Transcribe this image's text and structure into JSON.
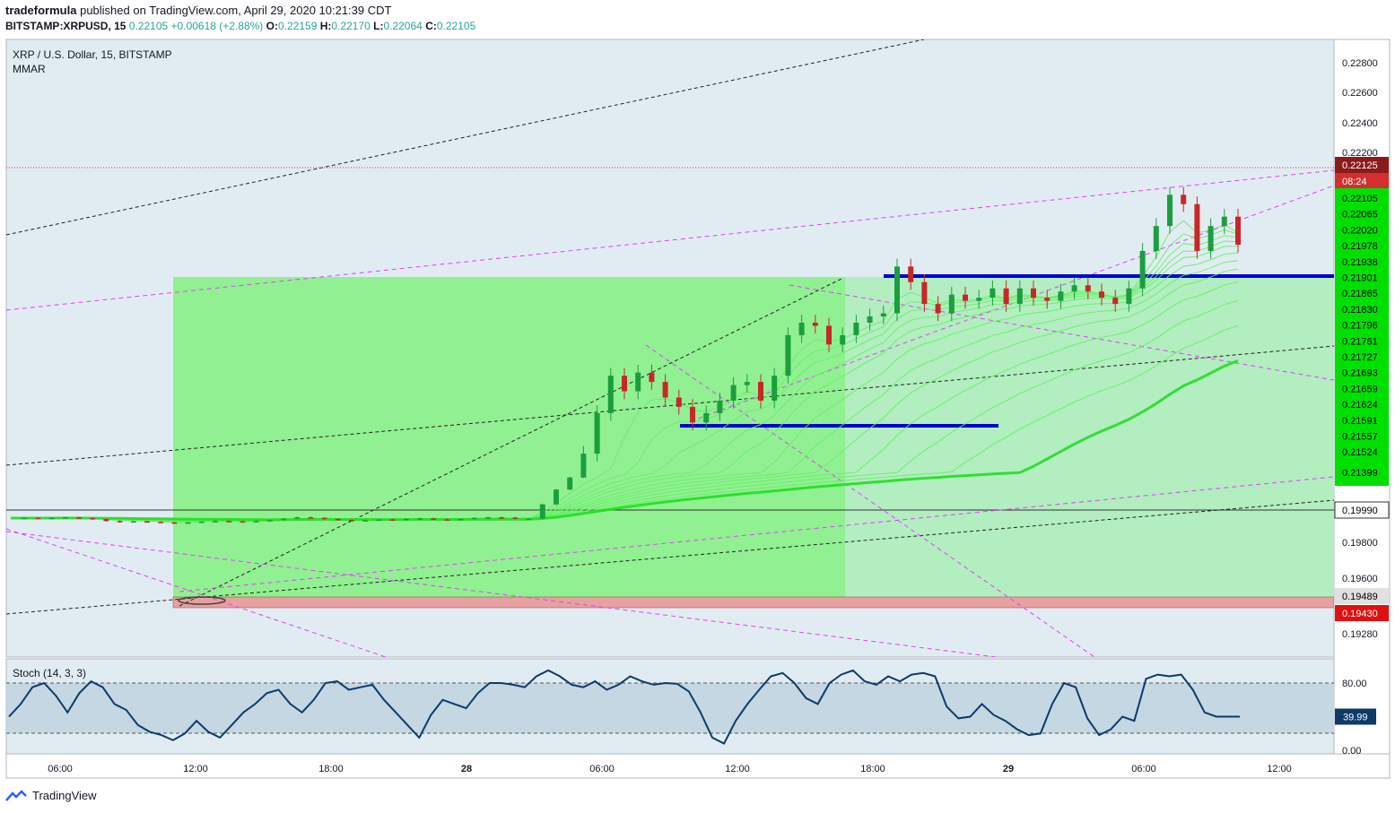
{
  "header": {
    "author": "tradeformula",
    "published_text": "published on TradingView.com, April 29, 2020 10:21:39 CDT",
    "symbol": "BITSTAMP:XRPUSD, 15",
    "last": "0.22105",
    "change": "+0.00618 (+2.88%)",
    "o_label": "O:",
    "o": "0.22159",
    "h_label": "H:",
    "h": "0.22170",
    "l_label": "L:",
    "l": "0.22064",
    "c_label": "C:",
    "c": "0.22105"
  },
  "legend": {
    "title": "XRP / U.S. Dollar, 15, BITSTAMP",
    "indicator": "MMAR"
  },
  "stoch_label": "Stoch (14, 3, 3)",
  "footer": {
    "brand": "TradingView"
  },
  "colors": {
    "bg": "#e1ecf2",
    "up": "#26a69a",
    "down": "#d32f2f",
    "zone_dark": "#8cf08c",
    "zone_light": "#b2eec0",
    "stop_zone": "#e8a0a0",
    "blue_line": "#0000cc",
    "magenta": "#e040fb",
    "stoch_line": "#0e3a67"
  },
  "chart_data": [
    {
      "type": "candlestick",
      "title": "XRP / U.S. Dollar, 15, BITSTAMP",
      "x_tick_labels": [
        "06:00",
        "12:00",
        "18:00",
        "28",
        "06:00",
        "12:00",
        "18:00",
        "29",
        "06:00",
        "12:00"
      ],
      "y_tick_labels": [
        "0.22800",
        "0.22600",
        "0.22400",
        "0.22200",
        "0.19800",
        "0.19600",
        "0.19280",
        "0.00"
      ],
      "price_labels": [
        {
          "value": "0.22125",
          "kind": "last-dotted"
        },
        {
          "value": "08:24",
          "kind": "countdown"
        },
        {
          "value": "0.22105",
          "kind": "green"
        },
        {
          "value": "0.22065",
          "kind": "green"
        },
        {
          "value": "0.22020",
          "kind": "green"
        },
        {
          "value": "0.21978",
          "kind": "green"
        },
        {
          "value": "0.21938",
          "kind": "green"
        },
        {
          "value": "0.21901",
          "kind": "green"
        },
        {
          "value": "0.21865",
          "kind": "green"
        },
        {
          "value": "0.21830",
          "kind": "green"
        },
        {
          "value": "0.21796",
          "kind": "green"
        },
        {
          "value": "0.21761",
          "kind": "green"
        },
        {
          "value": "0.21727",
          "kind": "green"
        },
        {
          "value": "0.21693",
          "kind": "green"
        },
        {
          "value": "0.21659",
          "kind": "green"
        },
        {
          "value": "0.21624",
          "kind": "green"
        },
        {
          "value": "0.21591",
          "kind": "green"
        },
        {
          "value": "0.21557",
          "kind": "green"
        },
        {
          "value": "0.21524",
          "kind": "green"
        },
        {
          "value": "0.21399",
          "kind": "green"
        },
        {
          "value": "0.19990",
          "kind": "dark"
        },
        {
          "value": "0.19489",
          "kind": "gray"
        },
        {
          "value": "0.19430",
          "kind": "red"
        }
      ],
      "horizontal_levels": [
        0.2191,
        0.2158,
        0.1999,
        0.19489,
        0.1943
      ],
      "close_path": [
        0.1969,
        0.197,
        0.1968,
        0.197,
        0.1972,
        0.1969,
        0.1965,
        0.1958,
        0.1955,
        0.1957,
        0.1955,
        0.1953,
        0.1951,
        0.1953,
        0.1956,
        0.1958,
        0.1957,
        0.1956,
        0.1958,
        0.1962,
        0.1967,
        0.1972,
        0.197,
        0.1966,
        0.1962,
        0.1958,
        0.1961,
        0.1964,
        0.1962,
        0.1966,
        0.1968,
        0.1964,
        0.1962,
        0.1966,
        0.197,
        0.1972,
        0.1971,
        0.1967,
        0.1967,
        0.202,
        0.2075,
        0.212,
        0.2145,
        0.2158,
        0.217,
        0.2165,
        0.2171,
        0.2168,
        0.2163,
        0.216,
        0.2155,
        0.2158,
        0.2162,
        0.2167,
        0.2168,
        0.2162,
        0.217,
        0.2183,
        0.2187,
        0.2186,
        0.218,
        0.2183,
        0.2187,
        0.2189,
        0.219,
        0.2205,
        0.22,
        0.2193,
        0.219,
        0.2196,
        0.2194,
        0.2195,
        0.2198,
        0.2193,
        0.2198,
        0.2195,
        0.2194,
        0.2197,
        0.2199,
        0.2197,
        0.2195,
        0.2193,
        0.2198,
        0.221,
        0.2218,
        0.2228,
        0.2225,
        0.221,
        0.2218,
        0.2221,
        0.2212
      ]
    },
    {
      "type": "line",
      "title": "Stoch (14, 3, 3)",
      "levels": [
        80,
        20
      ],
      "k_values": [
        40,
        55,
        75,
        80,
        65,
        45,
        68,
        82,
        75,
        55,
        48,
        30,
        22,
        18,
        12,
        20,
        35,
        22,
        15,
        30,
        45,
        55,
        68,
        72,
        55,
        45,
        60,
        80,
        82,
        72,
        75,
        78,
        60,
        45,
        30,
        15,
        42,
        60,
        55,
        50,
        68,
        80,
        80,
        78,
        75,
        88,
        95,
        88,
        78,
        75,
        82,
        72,
        78,
        88,
        82,
        78,
        80,
        79,
        70,
        45,
        15,
        8,
        35,
        55,
        72,
        88,
        92,
        80,
        62,
        55,
        80,
        90,
        95,
        82,
        78,
        88,
        82,
        90,
        92,
        88,
        52,
        38,
        40,
        55,
        42,
        35,
        25,
        18,
        20,
        55,
        80,
        75,
        38,
        18,
        25,
        40,
        35,
        85,
        90,
        88,
        90,
        72,
        45,
        40,
        40,
        40
      ]
    }
  ]
}
